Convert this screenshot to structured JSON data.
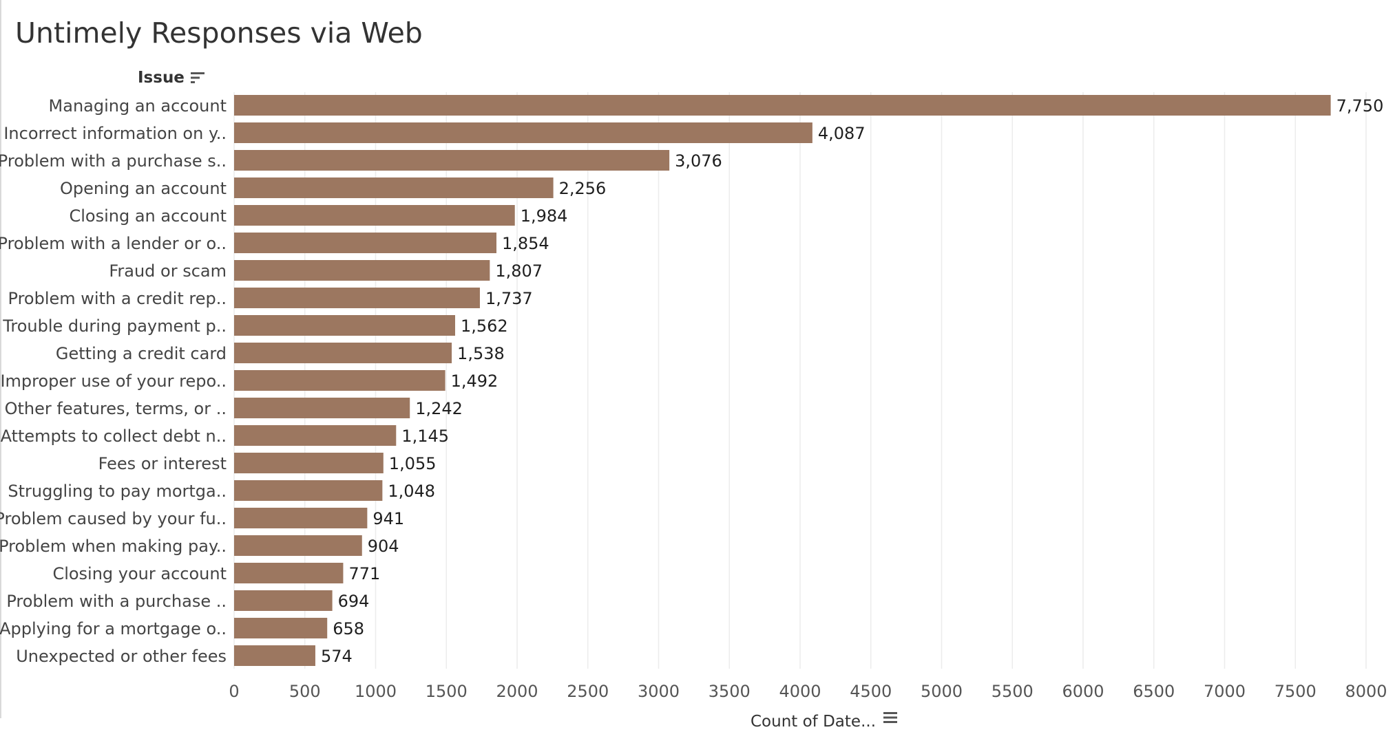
{
  "header": {
    "title": "Untimely Responses via Web"
  },
  "icons": {
    "row_sort": "sort-descending-icon",
    "axis_sort": "sort-descending-icon"
  },
  "colors": {
    "bar": "#9c7760",
    "grid": "#ececec",
    "text": "#333333",
    "label": "#1f1f1f"
  },
  "chart_data": {
    "type": "bar",
    "orientation": "horizontal",
    "title": "Untimely Responses via Web",
    "ylabel": "Issue",
    "xlabel": "Count of Date...",
    "xlim": [
      0,
      8000
    ],
    "xticks": [
      0,
      500,
      1000,
      1500,
      2000,
      2500,
      3000,
      3500,
      4000,
      4500,
      5000,
      5500,
      6000,
      6500,
      7000,
      7500,
      8000
    ],
    "grid": true,
    "categories": [
      "Managing an account",
      "Incorrect information on y..",
      "Problem with a purchase s..",
      "Opening an account",
      "Closing an account",
      "Problem with a lender or o..",
      "Fraud or scam",
      "Problem with a credit rep..",
      "Trouble during payment p..",
      "Getting a credit card",
      "Improper use of your repo..",
      "Other features, terms, or ..",
      "Attempts to collect debt n..",
      "Fees or interest",
      "Struggling to pay mortga..",
      "Problem caused by your fu..",
      "Problem when making pay..",
      "Closing your account",
      "Problem with a purchase ..",
      "Applying for a mortgage o..",
      "Unexpected or other fees"
    ],
    "values": [
      7750,
      4087,
      3076,
      2256,
      1984,
      1854,
      1807,
      1737,
      1562,
      1538,
      1492,
      1242,
      1145,
      1055,
      1048,
      941,
      904,
      771,
      694,
      658,
      574
    ],
    "data_labels": [
      "7,750",
      "4,087",
      "3,076",
      "2,256",
      "1,984",
      "1,854",
      "1,807",
      "1,737",
      "1,562",
      "1,538",
      "1,492",
      "1,242",
      "1,145",
      "1,055",
      "1,048",
      "941",
      "904",
      "771",
      "694",
      "658",
      "574"
    ]
  }
}
